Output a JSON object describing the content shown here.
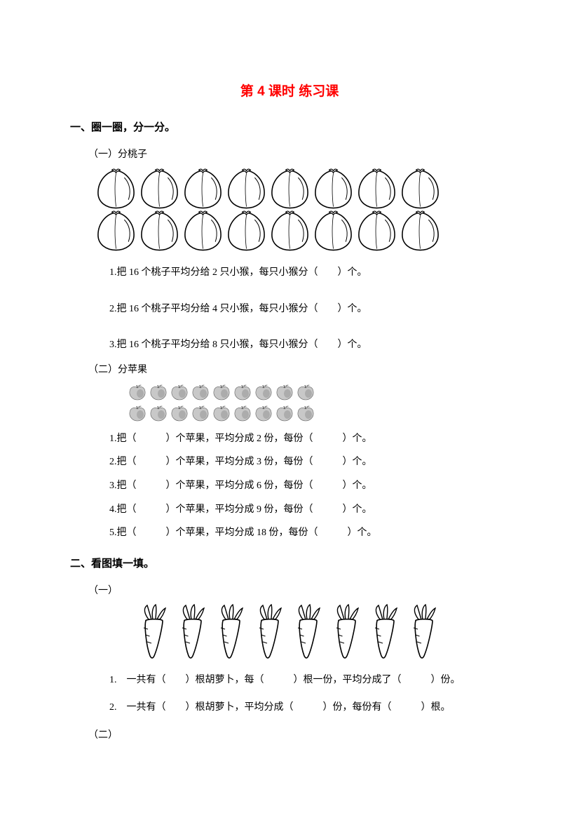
{
  "title": "第 4 课时 练习课",
  "s1": {
    "heading": "一、圈一圈，分一分。",
    "p1": {
      "label": "（一）分桃子",
      "peach_rows": 2,
      "peach_cols": 8,
      "q1": "1.把 16 个桃子平均分给 2 只小猴，每只小猴分（　　）个。",
      "q2": "2.把 16 个桃子平均分给 4 只小猴，每只小猴分（　　）个。",
      "q3": "3.把 16 个桃子平均分给 8 只小猴，每只小猴分（　　）个。"
    },
    "p2": {
      "label": "（二）分苹果",
      "apple_rows": 2,
      "apple_cols": 9,
      "q1": "1.把（　　　）个苹果，平均分成 2 份，每份（　　　）个。",
      "q2": "2.把（　　　）个苹果，平均分成 3 份，每份（　　　）个。",
      "q3": "3.把（　　　）个苹果，平均分成 6 份，每份（　　　）个。",
      "q4": "4.把（　　　）个苹果，平均分成 9 份，每份（　　　）个。",
      "q5": "5.把（　　　）个苹果，平均分成 18 份，每份（　　　）个。"
    }
  },
  "s2": {
    "heading": "二、看图填一填。",
    "p1": {
      "label": "（一）",
      "carrot_count": 8,
      "q1": "1.　一共有（　　）根胡萝卜，每（　　　）根一份，平均分成了（　　　）份。",
      "q2": "2.　一共有（　　）根胡萝卜，平均分成（　　　）份，每份有（　　　）根。"
    },
    "p2": {
      "label": "（二）"
    }
  },
  "colors": {
    "title": "#ff0000",
    "text": "#000000",
    "bg": "#ffffff",
    "stroke": "#000000",
    "apple_body": "#c8c8c8",
    "apple_shadow": "#808080"
  }
}
